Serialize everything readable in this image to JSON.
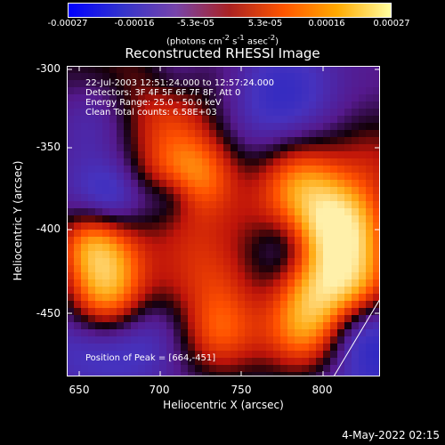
{
  "colorbar": {
    "ticks": [
      "-0.00027",
      "-0.00016",
      "-5.3e-05",
      "5.3e-05",
      "0.00016",
      "0.00027"
    ],
    "unit_html": "(photons cm<sup>-2</sup> s<sup>-1</sup> asec<sup>-2</sup>)",
    "colors": [
      "#0000ff",
      "#3333cc",
      "#7744aa",
      "#aa2222",
      "#ff5500",
      "#ffaa00",
      "#ffffa0"
    ]
  },
  "title": "Reconstructed RHESSI Image",
  "annotations": [
    "22-Jul-2003 12:51:24.000 to 12:57:24.000",
    "Detectors: 3F 4F 5F 6F 7F 8F, Att 0",
    "Energy Range: 25.0 - 50.0 keV",
    "Clean     Total counts: 6.58E+03"
  ],
  "peak_label": "Position of Peak = [664,-451]",
  "axes": {
    "x_label": "Heliocentric X (arcsec)",
    "y_label": "Heliocentric Y (arcsec)",
    "x_ticks": [
      "650",
      "700",
      "750",
      "800"
    ],
    "y_ticks": [
      "-300",
      "-350",
      "-400",
      "-450"
    ],
    "x_range": [
      643,
      836
    ],
    "y_range": [
      -299,
      -490
    ]
  },
  "footer": "4-May-2022 02:15"
}
